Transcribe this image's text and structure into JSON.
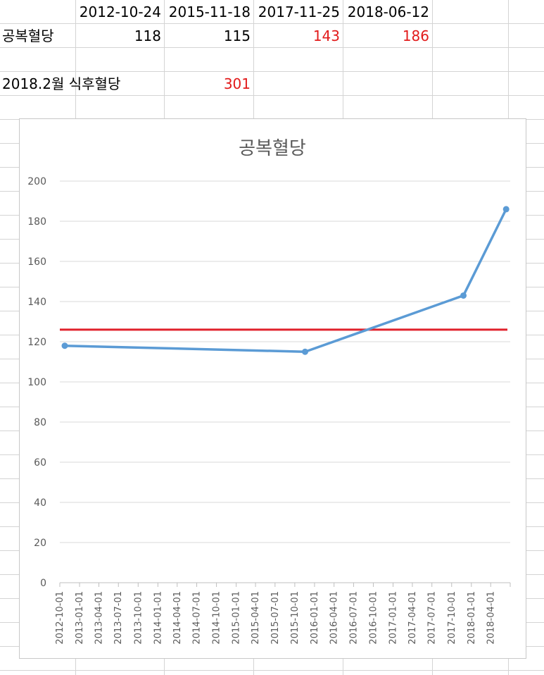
{
  "sheet": {
    "header_dates": [
      "2012-10-24",
      "2015-11-18",
      "2017-11-25",
      "2018-06-12"
    ],
    "row1": {
      "label": "공복혈당",
      "values": [
        "118",
        "115",
        "143",
        "186"
      ]
    },
    "row2": {
      "label": "2018.2월 식후혈당",
      "value": "301"
    }
  },
  "colors": {
    "series": "#5b9bd5",
    "threshold": "#e0202b",
    "highlight_text": "#e21b1b",
    "grid": "#d9d9d9"
  },
  "chart_data": {
    "type": "line",
    "title": "공복혈당",
    "xlabel": "",
    "ylabel": "",
    "ylim": [
      0,
      200
    ],
    "yticks": [
      0,
      20,
      40,
      60,
      80,
      100,
      120,
      140,
      160,
      180,
      200
    ],
    "x_tick_labels": [
      "2012-10-01",
      "2013-01-01",
      "2013-04-01",
      "2013-07-01",
      "2013-10-01",
      "2014-01-01",
      "2014-04-01",
      "2014-07-01",
      "2014-10-01",
      "2015-01-01",
      "2015-04-01",
      "2015-07-01",
      "2015-10-01",
      "2016-01-01",
      "2016-04-01",
      "2016-07-01",
      "2016-10-01",
      "2017-01-01",
      "2017-04-01",
      "2017-07-01",
      "2017-10-01",
      "2018-01-01",
      "2018-04-01"
    ],
    "grid": true,
    "legend": "none",
    "series": [
      {
        "x": [
          "2012-10-24",
          "2015-11-18",
          "2017-11-25",
          "2018-06-12"
        ],
        "y": [
          118,
          115,
          143,
          186
        ]
      }
    ],
    "threshold_line": {
      "y": 126
    }
  }
}
